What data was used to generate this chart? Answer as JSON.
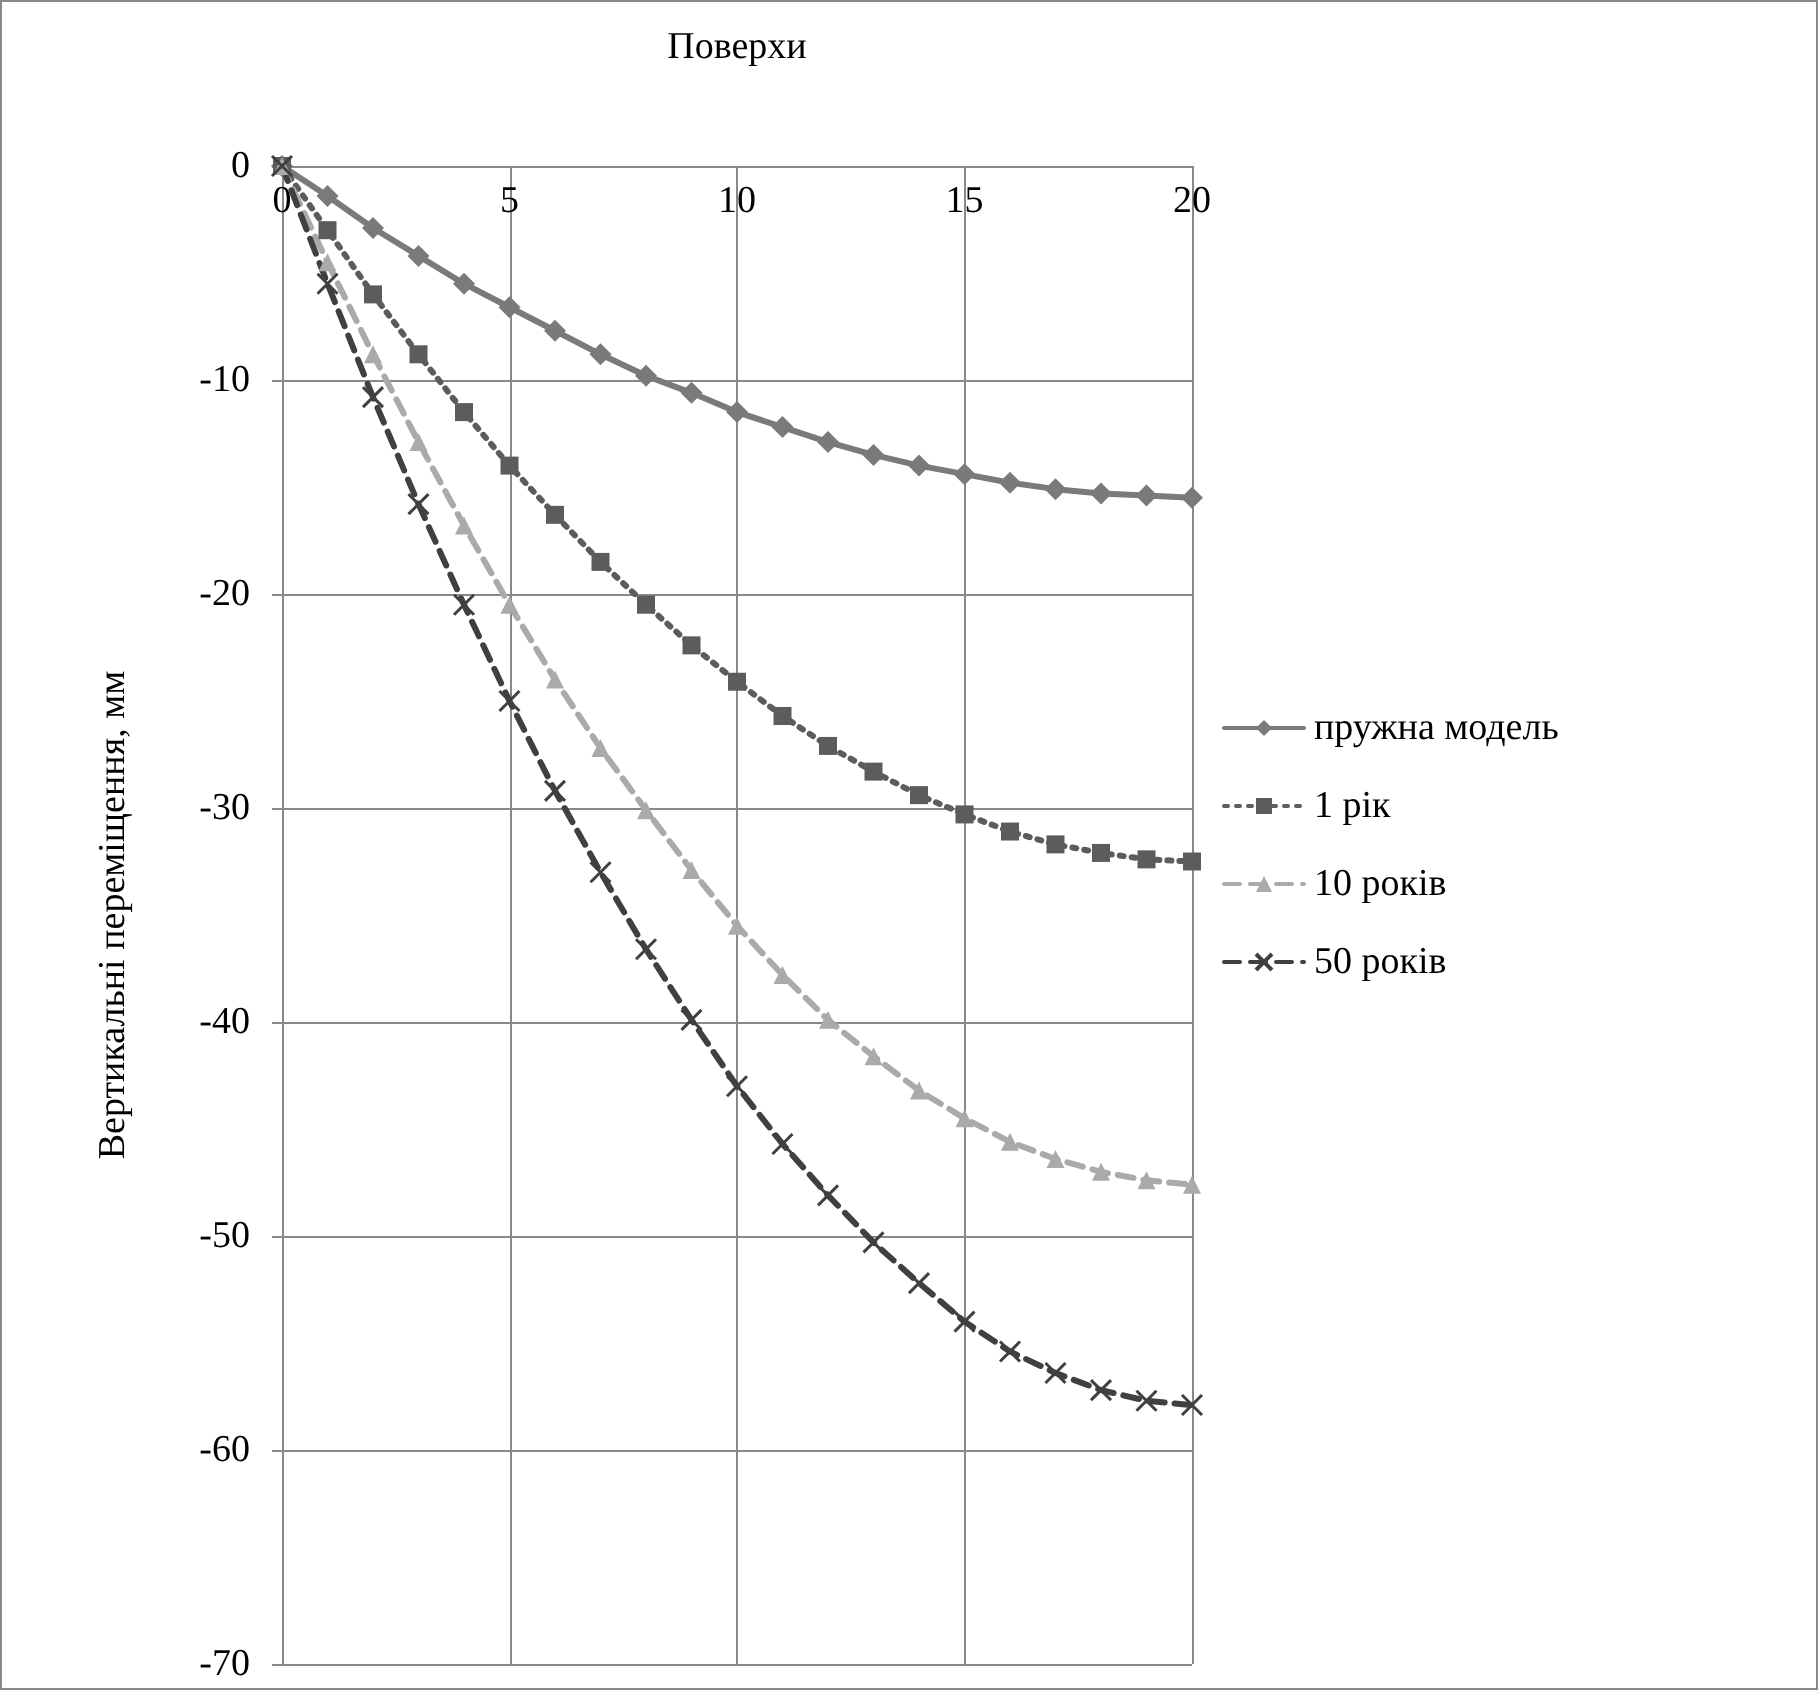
{
  "chart_data": {
    "type": "line",
    "xlabel": "Поверхи",
    "ylabel": "Вертикальні переміщення, мм",
    "x": [
      0,
      1,
      2,
      3,
      4,
      5,
      6,
      7,
      8,
      9,
      10,
      11,
      12,
      13,
      14,
      15,
      16,
      17,
      18,
      19,
      20
    ],
    "xlim": [
      0,
      20
    ],
    "xticks": [
      0,
      5,
      10,
      15,
      20
    ],
    "ylim": [
      -70,
      0
    ],
    "yticks": [
      -70,
      -60,
      -50,
      -40,
      -30,
      -20,
      -10,
      0
    ],
    "grid": true,
    "legend": "right",
    "series": [
      {
        "name": "пружна модель",
        "color": "#7a7a7a",
        "marker": "diamond",
        "line_style": "solid",
        "values": [
          0,
          -1.4,
          -2.9,
          -4.2,
          -5.5,
          -6.6,
          -7.7,
          -8.8,
          -9.8,
          -10.6,
          -11.5,
          -12.2,
          -12.9,
          -13.5,
          -14.0,
          -14.4,
          -14.8,
          -15.1,
          -15.3,
          -15.4,
          -15.5
        ]
      },
      {
        "name": "1 рік",
        "color": "#5c5c5c",
        "marker": "square",
        "line_style": "dotted",
        "values": [
          0,
          -3.0,
          -6.0,
          -8.8,
          -11.5,
          -14.0,
          -16.3,
          -18.5,
          -20.5,
          -22.4,
          -24.1,
          -25.7,
          -27.1,
          -28.3,
          -29.4,
          -30.3,
          -31.1,
          -31.7,
          -32.1,
          -32.4,
          -32.5
        ]
      },
      {
        "name": "10 років",
        "color": "#aaaaaa",
        "marker": "triangle",
        "line_style": "dashed",
        "values": [
          0,
          -4.5,
          -8.8,
          -12.9,
          -16.8,
          -20.5,
          -24.0,
          -27.2,
          -30.1,
          -32.9,
          -35.5,
          -37.8,
          -39.9,
          -41.6,
          -43.2,
          -44.5,
          -45.6,
          -46.4,
          -47.0,
          -47.4,
          -47.6
        ]
      },
      {
        "name": "50 років",
        "color": "#404040",
        "marker": "cross",
        "line_style": "dashed",
        "values": [
          0,
          -5.5,
          -10.8,
          -15.8,
          -20.5,
          -25.0,
          -29.2,
          -33.0,
          -36.6,
          -39.9,
          -43.0,
          -45.7,
          -48.1,
          -50.3,
          -52.2,
          -54.0,
          -55.4,
          -56.4,
          -57.2,
          -57.7,
          -57.9
        ]
      }
    ]
  }
}
